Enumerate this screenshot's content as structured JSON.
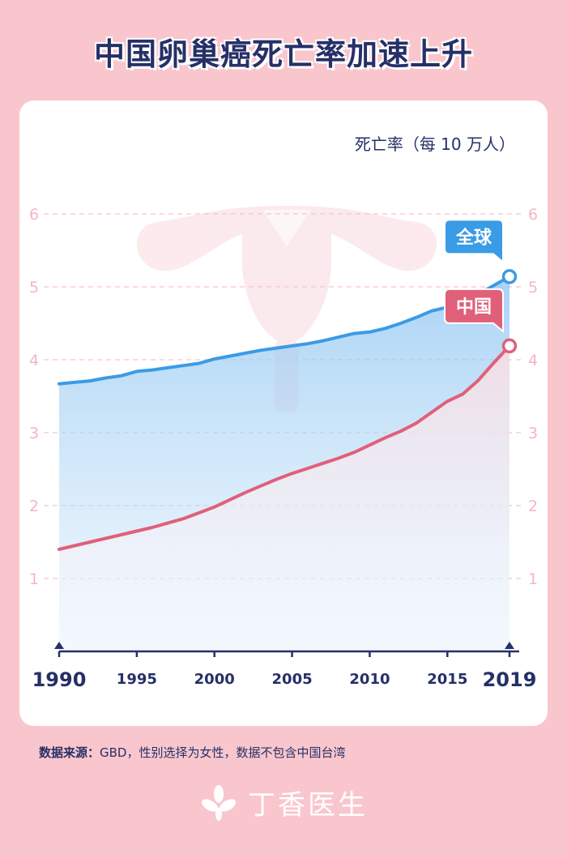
{
  "title": "中国卵巢癌死亡率加速上升",
  "source": {
    "label": "数据来源：",
    "text": "GBD，性别选择为女性，数据不包含中国台湾"
  },
  "brand": {
    "name": "丁香医生",
    "icon": "clove-flower-icon"
  },
  "colors": {
    "background": "#f9c6cd",
    "navy": "#263067",
    "global": "#3a9be6",
    "china": "#e0607a"
  },
  "chart_data": {
    "type": "line",
    "unit_label": "死亡率（每 10 万人）",
    "x": [
      1990,
      1991,
      1992,
      1993,
      1994,
      1995,
      1996,
      1997,
      1998,
      1999,
      2000,
      2001,
      2002,
      2003,
      2004,
      2005,
      2006,
      2007,
      2008,
      2009,
      2010,
      2011,
      2012,
      2013,
      2014,
      2015,
      2016,
      2017,
      2018,
      2019
    ],
    "x_ticks": [
      "1990",
      "1995",
      "2000",
      "2005",
      "2010",
      "2015",
      "2019"
    ],
    "y_ticks": [
      "1",
      "2",
      "3",
      "4",
      "5",
      "6"
    ],
    "ylim": [
      0,
      6.3
    ],
    "gridlines": [
      1,
      2,
      3,
      4,
      5,
      6
    ],
    "series": [
      {
        "name": "全球",
        "color": "#3a9be6",
        "values": [
          3.67,
          3.69,
          3.71,
          3.75,
          3.78,
          3.84,
          3.86,
          3.89,
          3.92,
          3.95,
          4.01,
          4.05,
          4.09,
          4.13,
          4.16,
          4.19,
          4.22,
          4.26,
          4.31,
          4.36,
          4.38,
          4.43,
          4.5,
          4.58,
          4.67,
          4.72,
          4.8,
          4.9,
          5.02,
          5.14
        ]
      },
      {
        "name": "中国",
        "color": "#e0607a",
        "values": [
          1.4,
          1.45,
          1.5,
          1.55,
          1.6,
          1.65,
          1.7,
          1.76,
          1.82,
          1.9,
          1.98,
          2.08,
          2.18,
          2.27,
          2.36,
          2.44,
          2.51,
          2.58,
          2.65,
          2.73,
          2.83,
          2.93,
          3.02,
          3.13,
          3.28,
          3.43,
          3.53,
          3.72,
          3.96,
          4.19
        ]
      }
    ]
  }
}
